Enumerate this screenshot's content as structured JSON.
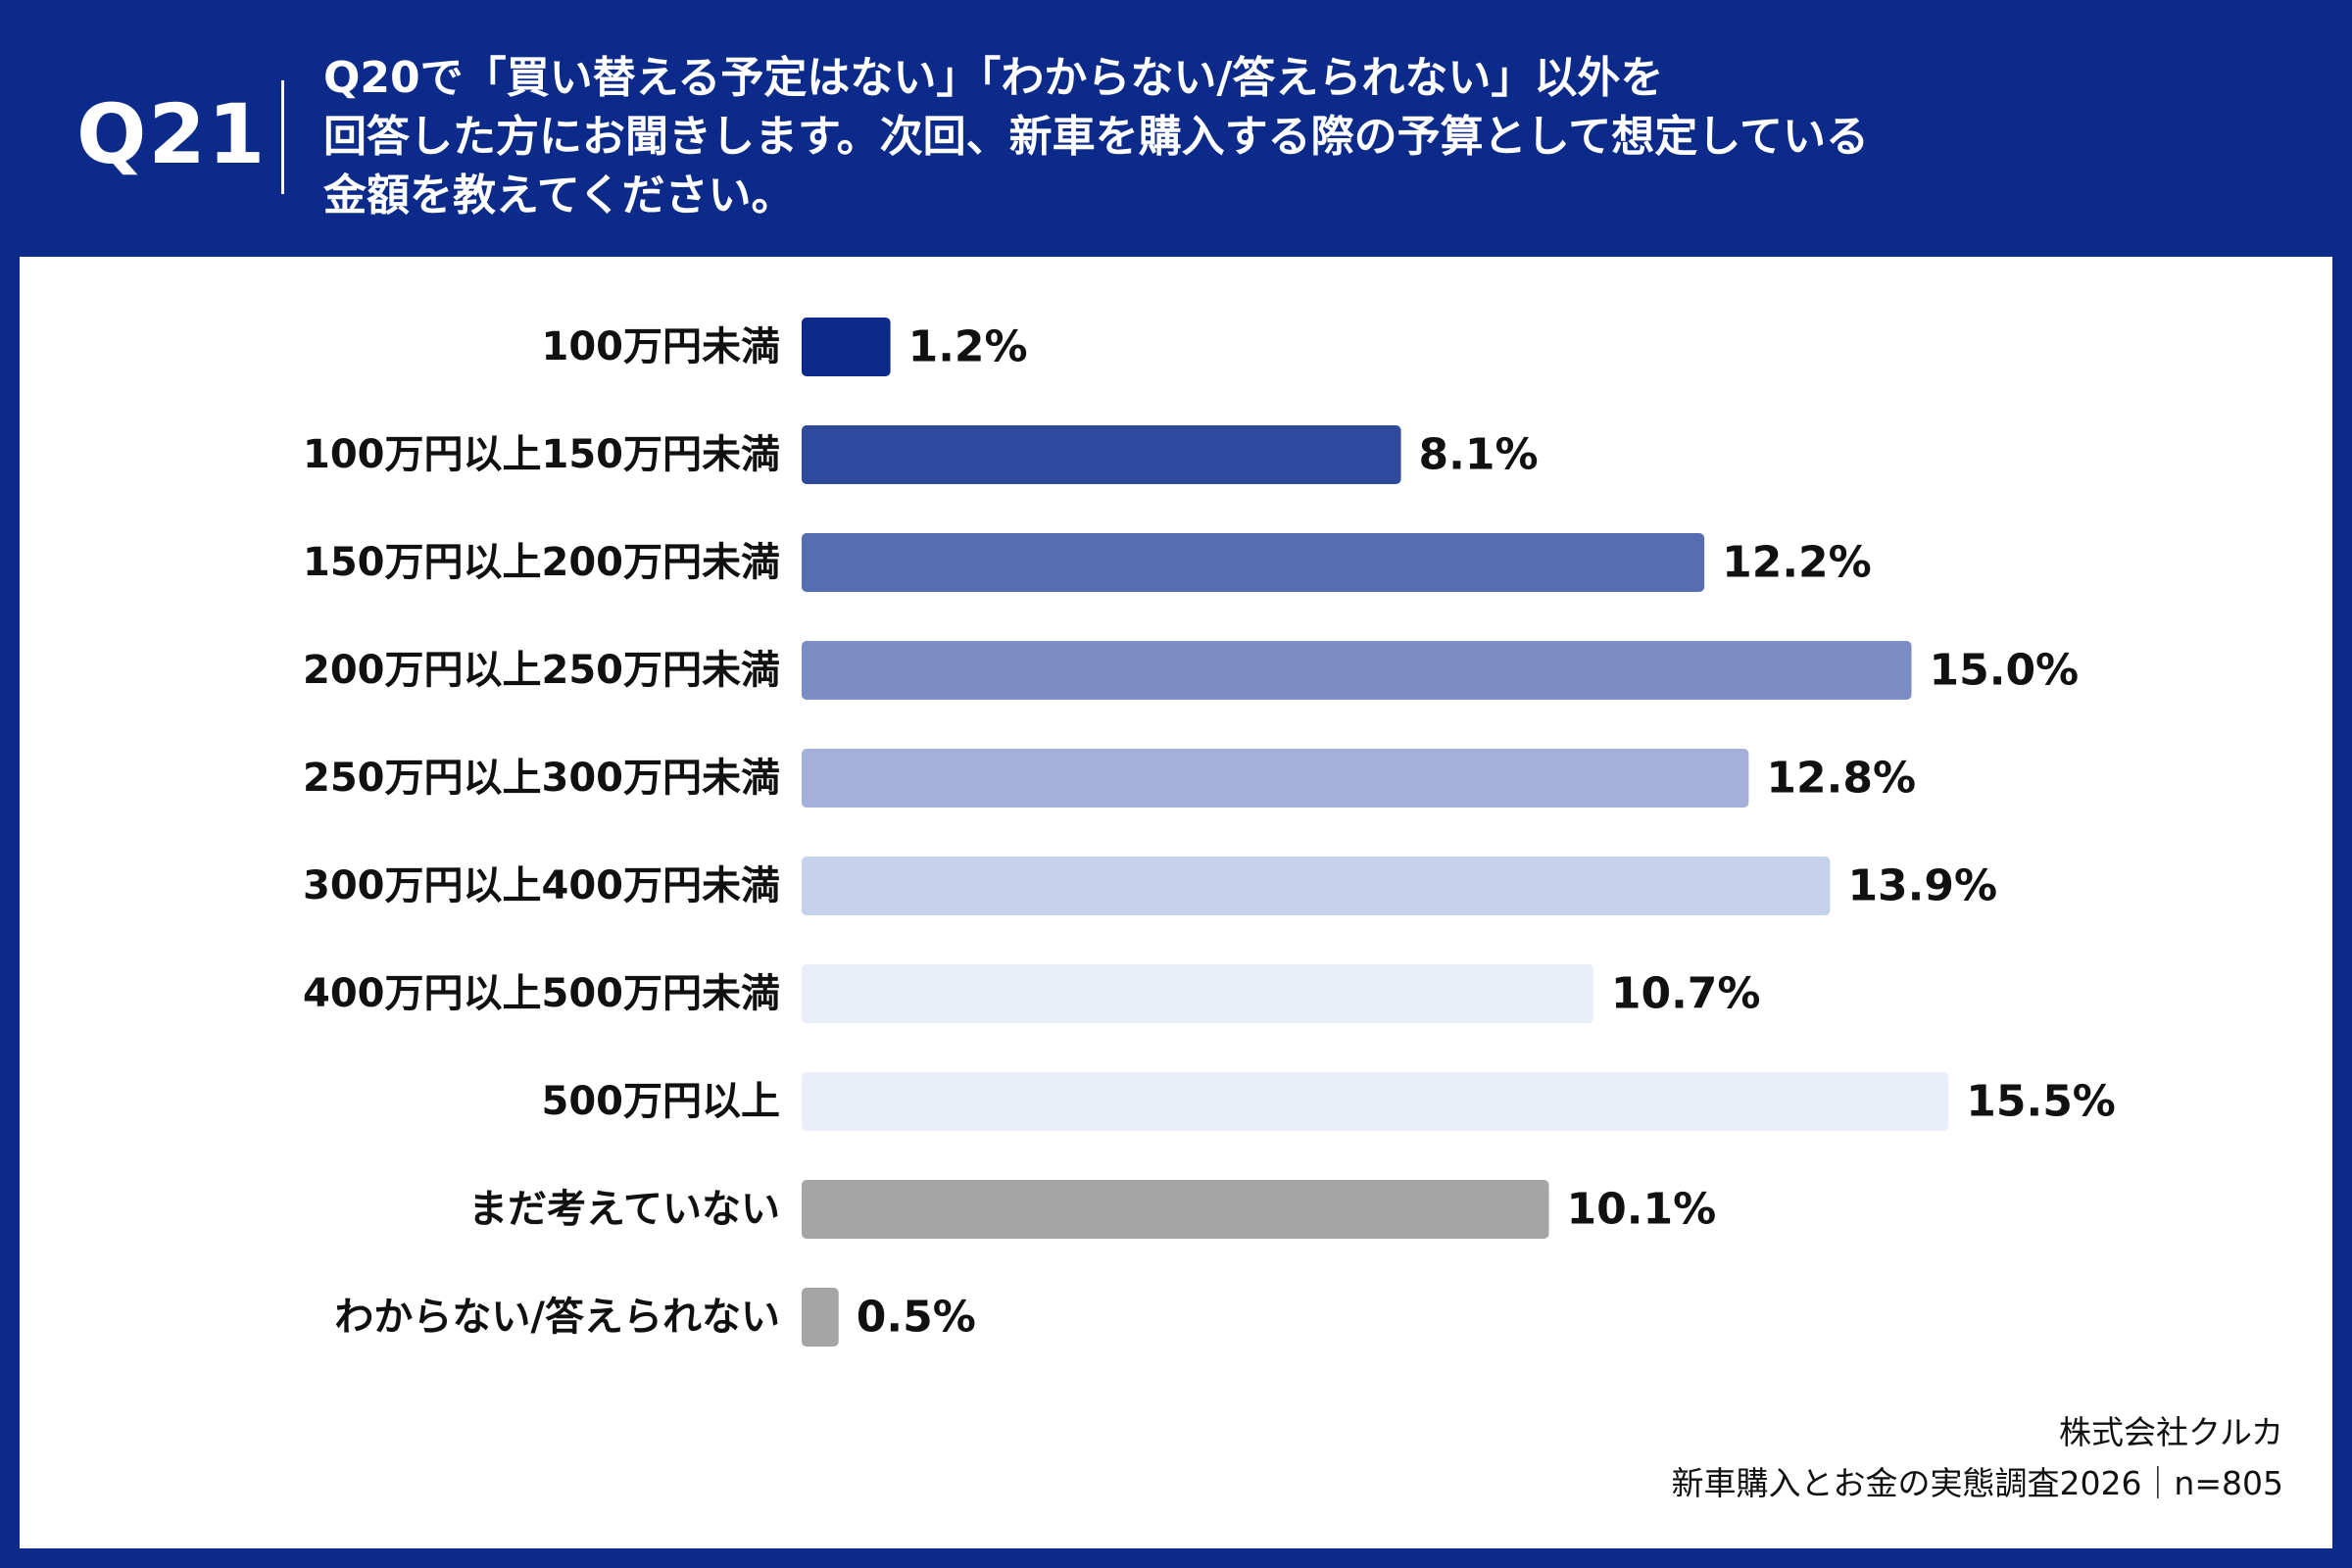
{
  "header": {
    "question_number": "Q21",
    "question_lines": [
      "Q20で「買い替える予定はない」「わからない/答えられない」以外を",
      "回答した方にお聞きします。次回、新車を購入する際の予算として想定している",
      "金額を教えてください。"
    ]
  },
  "chart_data": {
    "type": "bar",
    "orientation": "horizontal",
    "title": "",
    "xlabel": "",
    "ylabel": "",
    "xlim": [
      0,
      17
    ],
    "grid": false,
    "legend": "none",
    "categories": [
      "100万円未満",
      "100万円以上150万円未満",
      "150万円以上200万円未満",
      "200万円以上250万円未満",
      "250万円以上300万円未満",
      "300万円以上400万円未満",
      "400万円以上500万円未満",
      "500万円以上",
      "まだ考えていない",
      "わからない/答えられない"
    ],
    "values": [
      1.2,
      8.1,
      12.2,
      15.0,
      12.8,
      13.9,
      10.7,
      15.5,
      10.1,
      0.5
    ],
    "value_labels": [
      "1.2%",
      "8.1%",
      "12.2%",
      "15.0%",
      "12.8%",
      "13.9%",
      "10.7%",
      "15.5%",
      "10.1%",
      "0.5%"
    ],
    "colors": [
      "#0b2a8a",
      "#2f4a9c",
      "#566db2",
      "#7c8dc3",
      "#a2b0da",
      "#c6d0ea",
      "#e9eef8",
      "#e9eef8",
      "#a5a5a5",
      "#a5a5a5"
    ]
  },
  "source": {
    "company": "株式会社クルカ",
    "survey": "新車購入とお金の実態調査2026｜n=805"
  }
}
